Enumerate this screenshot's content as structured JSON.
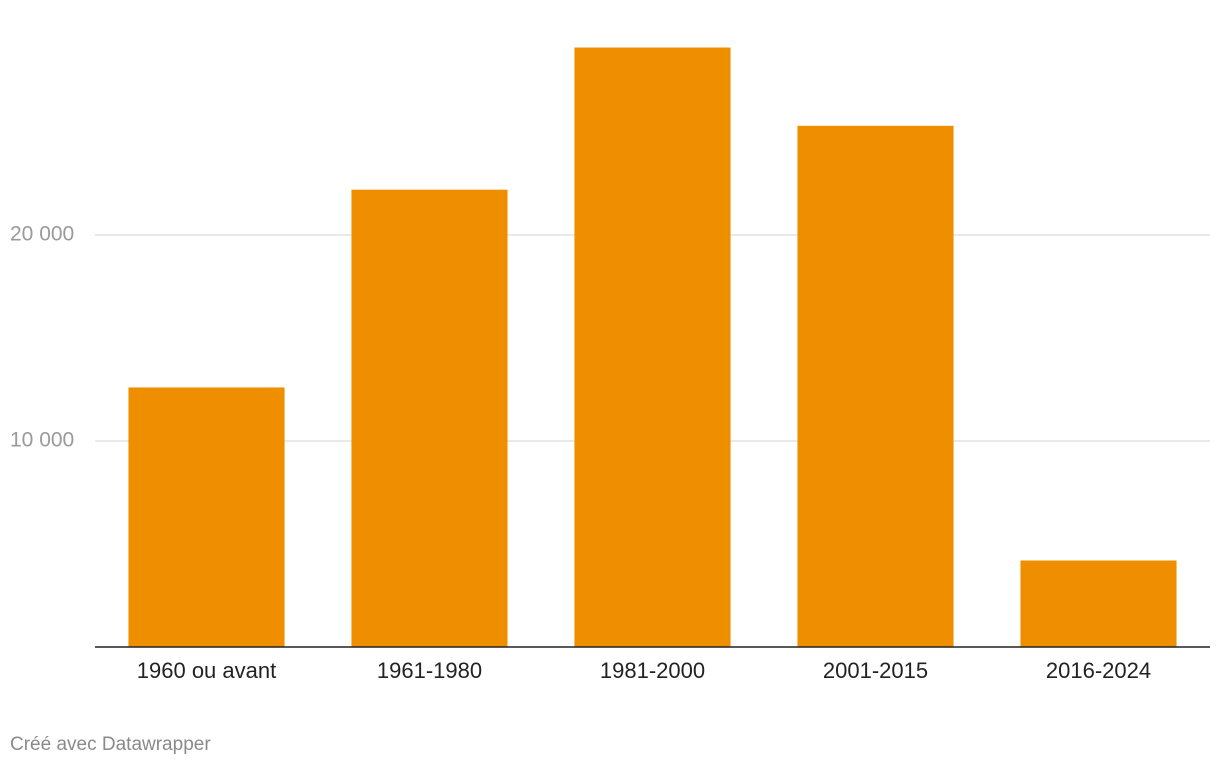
{
  "chart_data": {
    "type": "bar",
    "categories": [
      "1960 ou avant",
      "1961-1980",
      "1981-2000",
      "2001-2015",
      "2016-2024"
    ],
    "values": [
      12600,
      22200,
      29100,
      25300,
      4200
    ],
    "color": "#ef8f00",
    "ylim": [
      0,
      30000
    ],
    "yticks": [
      {
        "value": 10000,
        "label": "10 000"
      },
      {
        "value": 20000,
        "label": "20 000"
      }
    ],
    "grid": true,
    "credit": "Créé avec Datawrapper"
  }
}
